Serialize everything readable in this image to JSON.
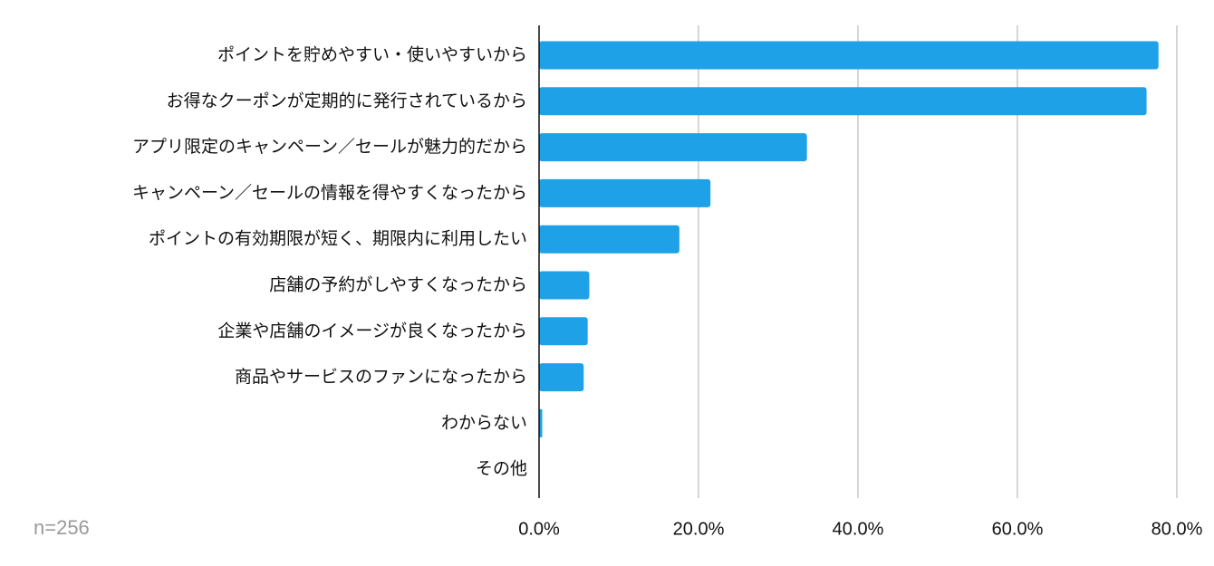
{
  "chart_data": {
    "type": "bar",
    "orientation": "horizontal",
    "categories": [
      "ポイントを貯めやすい・使いやすいから",
      "お得なクーポンが定期的に発行されているから",
      "アプリ限定のキャンペーン／セールが魅力的だから",
      "キャンペーン／セールの情報を得やすくなったから",
      "ポイントの有効期限が短く、期限内に利用したい",
      "店舗の予約がしやすくなったから",
      "企業や店舗のイメージが良くなったから",
      "商品やサービスのファンになったから",
      "わからない",
      "その他"
    ],
    "values": [
      77.7,
      76.2,
      33.6,
      21.5,
      17.6,
      6.3,
      6.1,
      5.6,
      0.4,
      0.0
    ],
    "xlim": [
      0,
      80
    ],
    "xticks": [
      "0.0%",
      "20.0%",
      "40.0%",
      "60.0%",
      "80.0%"
    ],
    "tick_values": [
      0,
      20,
      40,
      60,
      80
    ],
    "grid": true,
    "bar_color": "#1ea1e6",
    "grid_color": "#c8c8c8",
    "axis_color": "#111111",
    "note": "n=256"
  }
}
